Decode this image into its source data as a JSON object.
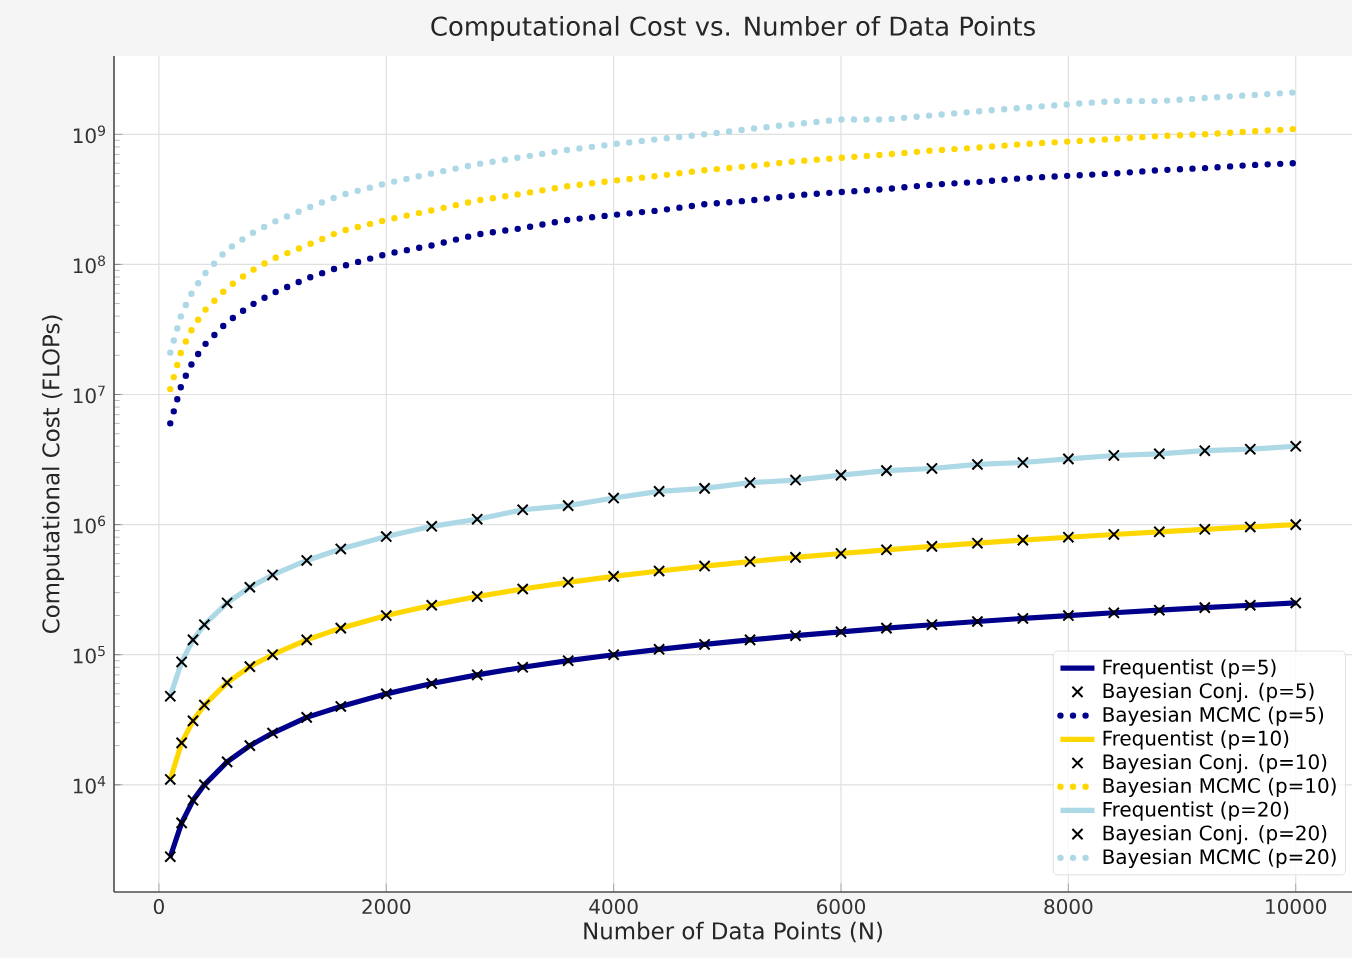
{
  "chart_data": {
    "type": "line",
    "title": "Computational Cost vs. Number of Data Points",
    "xlabel": "Number of Data Points (N)",
    "ylabel": "Computational Cost (FLOPs)",
    "log": "y",
    "grid": true,
    "legend": "bottom right",
    "xlim": [
      -395,
      10495
    ],
    "ylim": [
      1500,
      4000000000
    ],
    "xticks": [
      0,
      2000,
      4000,
      6000,
      8000,
      10000
    ],
    "yticks": [
      {
        "value": 10000,
        "label": "10$^{4}$"
      },
      {
        "value": 100000,
        "label": "10$^{5}$"
      },
      {
        "value": 1000000,
        "label": "10$^{6}$"
      },
      {
        "value": 10000000,
        "label": "10$^{7}$"
      },
      {
        "value": 100000000,
        "label": "10$^{8}$"
      },
      {
        "value": 1000000000,
        "label": "10$^{9}$"
      }
    ],
    "x": [
      100,
      200,
      300,
      400,
      600,
      800,
      1000,
      1300,
      1600,
      2000,
      2400,
      2800,
      3200,
      3600,
      4000,
      4400,
      4800,
      5200,
      5600,
      6000,
      6400,
      6800,
      7200,
      7600,
      8000,
      8400,
      8800,
      9200,
      9600,
      10000
    ],
    "series": [
      {
        "name": "Frequentist (p=5)",
        "line_style": "solid",
        "color": "#00008b",
        "values": [
          2800,
          5100,
          7600,
          10000,
          15000,
          20000,
          25000,
          33000,
          40000,
          50000,
          60000,
          70000,
          80000,
          90000,
          100000,
          110000,
          120000,
          130000,
          140000,
          150000,
          160000,
          170000,
          180000,
          190000,
          200000,
          210000,
          220000,
          230000,
          240000,
          250000
        ]
      },
      {
        "name": "Bayesian Conj. (p=5)",
        "type": "scatter",
        "marker": "cross",
        "color": "#000000",
        "values": [
          2800,
          5100,
          7600,
          10000,
          15000,
          20000,
          25000,
          33000,
          40000,
          50000,
          60000,
          70000,
          80000,
          90000,
          100000,
          110000,
          120000,
          130000,
          140000,
          150000,
          160000,
          170000,
          180000,
          190000,
          200000,
          210000,
          220000,
          230000,
          240000,
          250000
        ]
      },
      {
        "name": "Bayesian MCMC (p=5)",
        "line_style": "dotted",
        "color": "#00008b",
        "values": [
          6000000,
          12000000,
          18000000,
          24000000,
          36000000,
          48000000,
          60000000,
          78000000,
          96000000,
          120000000,
          140000000,
          170000000,
          190000000,
          220000000,
          240000000,
          260000000,
          290000000,
          310000000,
          340000000,
          360000000,
          380000000,
          410000000,
          430000000,
          460000000,
          480000000,
          500000000,
          530000000,
          550000000,
          580000000,
          600000000
        ]
      },
      {
        "name": "Frequentist (p=10)",
        "line_style": "solid",
        "color": "#ffd700",
        "values": [
          11000,
          21000,
          31000,
          41000,
          61000,
          81000,
          100000,
          130000,
          160000,
          200000,
          240000,
          280000,
          320000,
          360000,
          400000,
          440000,
          480000,
          520000,
          560000,
          600000,
          640000,
          680000,
          720000,
          760000,
          800000,
          840000,
          880000,
          920000,
          960000,
          1000000
        ]
      },
      {
        "name": "Bayesian Conj. (p=10)",
        "type": "scatter",
        "marker": "cross",
        "color": "#000000",
        "values": [
          11000,
          21000,
          31000,
          41000,
          61000,
          81000,
          100000,
          130000,
          160000,
          200000,
          240000,
          280000,
          320000,
          360000,
          400000,
          440000,
          480000,
          520000,
          560000,
          600000,
          640000,
          680000,
          720000,
          760000,
          800000,
          840000,
          880000,
          920000,
          960000,
          1000000
        ]
      },
      {
        "name": "Bayesian MCMC (p=10)",
        "line_style": "dotted",
        "color": "#ffd700",
        "values": [
          11000000,
          22000000,
          33000000,
          44000000,
          66000000,
          88000000,
          110000000,
          140000000,
          180000000,
          220000000,
          260000000,
          310000000,
          350000000,
          400000000,
          440000000,
          480000000,
          530000000,
          570000000,
          620000000,
          660000000,
          700000000,
          750000000,
          790000000,
          840000000,
          880000000,
          920000000,
          970000000,
          1000000000,
          1050000000,
          1100000000
        ]
      },
      {
        "name": "Frequentist (p=20)",
        "line_style": "solid",
        "color": "#add8e6",
        "values": [
          48000,
          88000,
          130000,
          170000,
          250000,
          330000,
          410000,
          530000,
          650000,
          810000,
          970000,
          1100000,
          1300000,
          1400000,
          1600000,
          1800000,
          1900000,
          2100000,
          2200000,
          2400000,
          2600000,
          2700000,
          2900000,
          3000000,
          3200000,
          3400000,
          3500000,
          3700000,
          3800000,
          4000000
        ]
      },
      {
        "name": "Bayesian Conj. (p=20)",
        "type": "scatter",
        "marker": "cross",
        "color": "#000000",
        "values": [
          48000,
          88000,
          130000,
          170000,
          250000,
          330000,
          410000,
          530000,
          650000,
          810000,
          970000,
          1100000,
          1300000,
          1400000,
          1600000,
          1800000,
          1900000,
          2100000,
          2200000,
          2400000,
          2600000,
          2700000,
          2900000,
          3000000,
          3200000,
          3400000,
          3500000,
          3700000,
          3800000,
          4000000
        ]
      },
      {
        "name": "Bayesian MCMC (p=20)",
        "line_style": "dotted",
        "color": "#add8e6",
        "values": [
          21000000,
          42000000,
          63000000,
          84000000,
          130000000,
          170000000,
          210000000,
          270000000,
          340000000,
          420000000,
          500000000,
          590000000,
          670000000,
          760000000,
          840000000,
          920000000,
          1000000000,
          1100000000,
          1200000000,
          1300000000,
          1300000000,
          1400000000,
          1500000000,
          1600000000,
          1700000000,
          1800000000,
          1800000000,
          1900000000,
          2000000000,
          2100000000
        ]
      }
    ]
  }
}
